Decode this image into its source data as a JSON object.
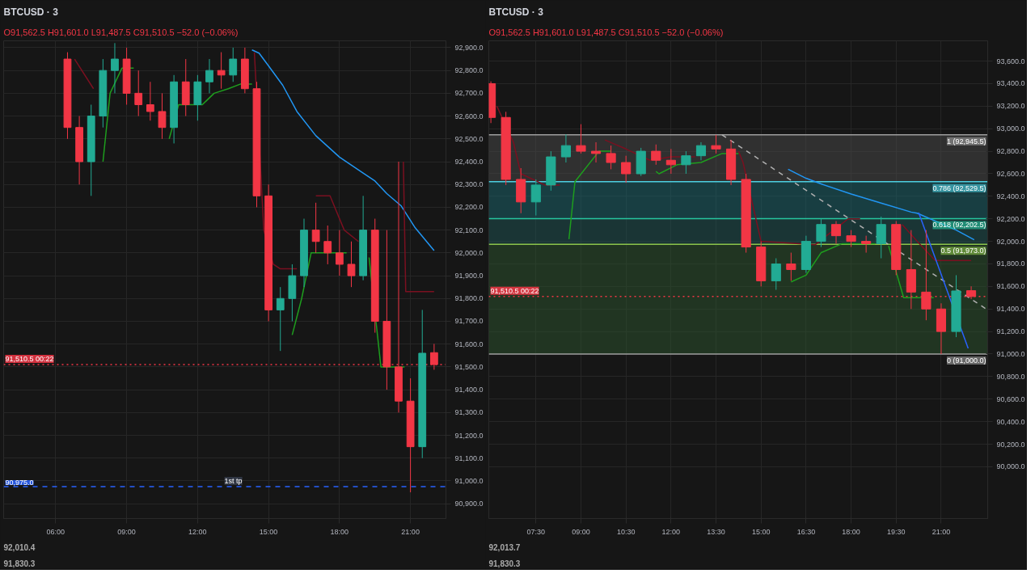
{
  "chart_data": [
    {
      "type": "candlestick",
      "title": "BTCUSD · 3",
      "subtitle": "O91,562.5 H91,601.0 L91,487.5 C91,510.5 −52.0 (−0.06%)",
      "x": [
        6.5,
        7.0,
        7.5,
        8.0,
        8.5,
        9.0,
        9.5,
        10.0,
        10.5,
        11.0,
        11.5,
        12.0,
        12.5,
        13.0,
        13.5,
        14.0,
        14.5,
        15.0,
        15.5,
        16.0,
        16.5,
        17.0,
        17.5,
        18.0,
        18.5,
        19.0,
        19.5,
        20.0,
        20.5,
        21.0,
        21.5,
        22.0
      ],
      "ohlc": [
        [
          92850,
          92880,
          92500,
          92550
        ],
        [
          92550,
          92600,
          92300,
          92400
        ],
        [
          92400,
          92650,
          92250,
          92600
        ],
        [
          92600,
          92850,
          92550,
          92800
        ],
        [
          92800,
          92920,
          92700,
          92850
        ],
        [
          92850,
          92900,
          92650,
          92700
        ],
        [
          92700,
          92800,
          92600,
          92650
        ],
        [
          92650,
          92750,
          92580,
          92620
        ],
        [
          92620,
          92700,
          92500,
          92550
        ],
        [
          92550,
          92780,
          92480,
          92750
        ],
        [
          92750,
          92850,
          92600,
          92650
        ],
        [
          92650,
          92780,
          92580,
          92750
        ],
        [
          92750,
          92850,
          92700,
          92800
        ],
        [
          92800,
          92880,
          92720,
          92780
        ],
        [
          92780,
          92900,
          92750,
          92850
        ],
        [
          92850,
          92900,
          92700,
          92720
        ],
        [
          92720,
          92750,
          92200,
          92250
        ],
        [
          92250,
          92300,
          91700,
          91750
        ],
        [
          91750,
          91850,
          91570,
          91800
        ],
        [
          91800,
          91950,
          91700,
          91900
        ],
        [
          91900,
          92150,
          91850,
          92100
        ],
        [
          92100,
          92220,
          92000,
          92050
        ],
        [
          92050,
          92120,
          91950,
          92000
        ],
        [
          92000,
          92100,
          91900,
          91950
        ],
        [
          91950,
          92050,
          91850,
          91900
        ],
        [
          91900,
          92250,
          91880,
          92100
        ],
        [
          92100,
          92150,
          91650,
          91700
        ],
        [
          91700,
          92100,
          91400,
          91500
        ],
        [
          91500,
          92400,
          91300,
          91350
        ],
        [
          91350,
          91450,
          90950,
          91150
        ],
        [
          91150,
          91750,
          91100,
          91560
        ],
        [
          91562.5,
          91601.0,
          91487.5,
          91510.5
        ]
      ],
      "colors": [
        "#f23645",
        "#f23645",
        "#22ab94",
        "#22ab94",
        "#22ab94",
        "#f23645",
        "#f23645",
        "#f23645",
        "#f23645",
        "#22ab94",
        "#f23645",
        "#22ab94",
        "#22ab94",
        "#f23645",
        "#22ab94",
        "#f23645",
        "#f23645",
        "#f23645",
        "#22ab94",
        "#22ab94",
        "#22ab94",
        "#f23645",
        "#f23645",
        "#f23645",
        "#f23645",
        "#22ab94",
        "#f23645",
        "#f23645",
        "#f23645",
        "#f23645",
        "#22ab94",
        "#f23645"
      ],
      "series": [
        {
          "type": "line",
          "color": "#2196f3",
          "x": [
            14.3,
            14.6,
            15.0,
            15.6,
            16.2,
            17.0,
            18.0,
            19.0,
            19.5,
            20.0,
            20.6,
            21.2,
            22.0
          ],
          "values": [
            92890,
            92876,
            92820,
            92735,
            92620,
            92514,
            92420,
            92350,
            92315,
            92260,
            92207,
            92110,
            92010.4
          ]
        },
        {
          "type": "line",
          "color": "#7a1020",
          "x": [
            6.8,
            7.6,
            7.7,
            14.4,
            14.8,
            15.2,
            15.5,
            16.2,
            16.9,
            17.0,
            17.6,
            18.2,
            18.8,
            18.9,
            20.7,
            20.8,
            21.6,
            22.0
          ],
          "values": [
            92850,
            92720,
            null,
            92880,
            92100,
            91950,
            91930,
            91930,
            null,
            92250,
            92250,
            92100,
            92050,
            null,
            92400,
            91830.3,
            91830.3,
            91830.3
          ]
        },
        {
          "type": "line",
          "color": "#1e9e1e",
          "x": [
            8.0,
            8.3,
            8.8,
            9.3,
            9.5,
            10.8,
            11.2,
            12.2,
            12.7,
            13.3,
            13.8,
            14.3,
            15.8,
            16.0,
            16.4,
            16.8,
            18.3,
            19.2,
            19.25,
            19.75,
            20.25,
            20.75
          ],
          "values": [
            92400,
            92700,
            92810,
            92810,
            null,
            92500,
            92650,
            92650,
            92700,
            92720,
            92740,
            92740,
            null,
            91640,
            91800,
            92000,
            92000,
            null,
            91980,
            91500,
            91500,
            91500
          ]
        }
      ],
      "xlim": [
        3.8,
        22.5
      ],
      "ylim": [
        90835,
        92930
      ],
      "xticks": [
        {
          "value": 6,
          "label": "06:00"
        },
        {
          "value": 9,
          "label": "09:00"
        },
        {
          "value": 12,
          "label": "12:00"
        },
        {
          "value": 15,
          "label": "15:00"
        },
        {
          "value": 18,
          "label": "18:00"
        },
        {
          "value": 21,
          "label": "21:00"
        }
      ],
      "yticks": [
        {
          "value": 90900,
          "label": "90,900.0"
        },
        {
          "value": 91000,
          "label": "91,000.0"
        },
        {
          "value": 91100,
          "label": "91,100.0"
        },
        {
          "value": 91200,
          "label": "91,200.0"
        },
        {
          "value": 91300,
          "label": "91,300.0"
        },
        {
          "value": 91400,
          "label": "91,400.0"
        },
        {
          "value": 91500,
          "label": "91,500.0"
        },
        {
          "value": 91600,
          "label": "91,600.0"
        },
        {
          "value": 91700,
          "label": "91,700.0"
        },
        {
          "value": 91800,
          "label": "91,800.0"
        },
        {
          "value": 91900,
          "label": "91,900.0"
        },
        {
          "value": 92000,
          "label": "92,000.0"
        },
        {
          "value": 92100,
          "label": "92,100.0"
        },
        {
          "value": 92200,
          "label": "92,200.0"
        },
        {
          "value": 92300,
          "label": "92,300.0"
        },
        {
          "value": 92400,
          "label": "92,400.0"
        },
        {
          "value": 92500,
          "label": "92,500.0"
        },
        {
          "value": 92600,
          "label": "92,600.0"
        },
        {
          "value": 92700,
          "label": "92,700.0"
        },
        {
          "value": 92800,
          "label": "92,800.0"
        },
        {
          "value": 92900,
          "label": "92,900.0"
        }
      ],
      "grid": true,
      "ref_lines": [
        {
          "axis": "y",
          "value": 91510.5,
          "label": "91,510.5 00:22",
          "color": "#f23645",
          "line_style": "dotted"
        },
        {
          "axis": "y",
          "value": 90975.0,
          "label": "90,975.0",
          "color": "#2962ff",
          "line_style": "dashed"
        }
      ],
      "annotations": [
        {
          "text": "1st tp",
          "x": 13.0,
          "y": 90975.0
        },
        "92,010.4",
        "91,830.3"
      ]
    },
    {
      "type": "candlestick",
      "title": "BTCUSD · 3",
      "subtitle": "O91,562.5 H91,601.0 L91,487.5 C91,510.5 −52.0 (−0.06%)",
      "x": [
        6.0,
        6.5,
        7.0,
        7.5,
        8.0,
        8.5,
        9.0,
        9.5,
        10.0,
        10.5,
        11.0,
        11.5,
        12.0,
        12.5,
        13.0,
        13.5,
        14.0,
        14.5,
        15.0,
        15.5,
        16.0,
        16.5,
        17.0,
        17.5,
        18.0,
        18.5,
        19.0,
        19.5,
        20.0,
        20.5,
        21.0,
        21.5,
        22.0
      ],
      "ohlc": [
        [
          93400,
          93420,
          93050,
          93100
        ],
        [
          93100,
          93150,
          92500,
          92550
        ],
        [
          92550,
          92650,
          92250,
          92350
        ],
        [
          92350,
          92550,
          92230,
          92500
        ],
        [
          92500,
          92800,
          92450,
          92750
        ],
        [
          92750,
          92950,
          92700,
          92850
        ],
        [
          92850,
          93040,
          92780,
          92800
        ],
        [
          92800,
          92880,
          92700,
          92780
        ],
        [
          92780,
          92850,
          92640,
          92700
        ],
        [
          92700,
          92760,
          92520,
          92600
        ],
        [
          92600,
          92830,
          92580,
          92800
        ],
        [
          92800,
          92860,
          92680,
          92720
        ],
        [
          92720,
          92820,
          92600,
          92680
        ],
        [
          92680,
          92800,
          92600,
          92760
        ],
        [
          92760,
          92880,
          92720,
          92850
        ],
        [
          92850,
          92945,
          92780,
          92820
        ],
        [
          92820,
          92900,
          92500,
          92550
        ],
        [
          92550,
          92600,
          91900,
          91950
        ],
        [
          91950,
          92000,
          91600,
          91650
        ],
        [
          91650,
          91850,
          91570,
          91800
        ],
        [
          91800,
          91900,
          91650,
          91750
        ],
        [
          91750,
          92050,
          91720,
          92000
        ],
        [
          92000,
          92200,
          91950,
          92150
        ],
        [
          92150,
          92180,
          91980,
          92050
        ],
        [
          92050,
          92100,
          91950,
          92000
        ],
        [
          92000,
          92050,
          91900,
          91980
        ],
        [
          91980,
          92220,
          91850,
          92150
        ],
        [
          92150,
          92180,
          91700,
          91750
        ],
        [
          91750,
          92100,
          91400,
          91550
        ],
        [
          91550,
          92100,
          91300,
          91400
        ],
        [
          91400,
          91450,
          91000,
          91200
        ],
        [
          91200,
          91700,
          91150,
          91560
        ],
        [
          91562.5,
          91601.0,
          91487.5,
          91510.5
        ]
      ],
      "colors": [
        "#f23645",
        "#f23645",
        "#f23645",
        "#22ab94",
        "#22ab94",
        "#22ab94",
        "#f23645",
        "#f23645",
        "#f23645",
        "#f23645",
        "#22ab94",
        "#f23645",
        "#f23645",
        "#22ab94",
        "#22ab94",
        "#f23645",
        "#f23645",
        "#f23645",
        "#f23645",
        "#22ab94",
        "#f23645",
        "#22ab94",
        "#22ab94",
        "#f23645",
        "#f23645",
        "#f23645",
        "#22ab94",
        "#f23645",
        "#f23645",
        "#f23645",
        "#f23645",
        "#22ab94",
        "#f23645"
      ],
      "series": [
        {
          "type": "line",
          "color": "#2196f3",
          "x": [
            15.9,
            16.5,
            17.0,
            18.0,
            19.0,
            20.0,
            20.2,
            21.5,
            22.1
          ],
          "values": [
            92640,
            92560,
            92510,
            92420,
            92340,
            92260,
            92250,
            92100,
            92013.7
          ]
        },
        {
          "type": "line",
          "color": "#7a1020",
          "x": [
            6.2,
            6.75,
            7.0,
            7.8,
            8.3,
            8.4,
            9.8,
            10.5,
            11.3,
            12.0,
            12.8,
            13.3,
            14.25,
            14.4,
            15.0,
            16.8,
            17.9,
            18.3,
            19.2,
            19.7,
            20.2,
            20.8,
            22.0
          ],
          "values": [
            93200,
            92880,
            92600,
            92500,
            92500,
            null,
            92900,
            92820,
            92720,
            92750,
            92750,
            null,
            92800,
            92700,
            92000,
            91970,
            92200,
            92200,
            null,
            92150,
            92000,
            91830.3,
            91830.3
          ]
        },
        {
          "type": "line",
          "color": "#1e9e1e",
          "x": [
            8.6,
            8.8,
            9.6,
            10.0,
            10.4,
            11.5,
            11.6,
            12.2,
            13.0,
            13.7,
            14.25,
            14.3,
            16.0,
            16.5,
            17.0,
            17.7,
            18.8,
            19.1,
            19.25,
            19.75,
            20.25,
            20.75
          ],
          "values": [
            92020,
            92530,
            92800,
            92800,
            null,
            92620,
            92600,
            92680,
            92700,
            92780,
            92780,
            null,
            91640,
            91700,
            91900,
            91980,
            91980,
            null,
            91960,
            91500,
            91500,
            91500
          ]
        },
        {
          "type": "line",
          "color": "#b0b0b0",
          "line_style": "dashed",
          "x": [
            13.7,
            22.5
          ],
          "values": [
            92945.5,
            91400
          ]
        },
        {
          "type": "line",
          "color": "#2962ff",
          "x": [
            20.25,
            21.9
          ],
          "values": [
            92255,
            91050
          ]
        }
      ],
      "xlim": [
        5.93,
        22.55
      ],
      "ylim": [
        89540,
        93780
      ],
      "xticks": [
        {
          "value": 7.5,
          "label": "07:30"
        },
        {
          "value": 9,
          "label": "09:00"
        },
        {
          "value": 10.5,
          "label": "10:30"
        },
        {
          "value": 12,
          "label": "12:00"
        },
        {
          "value": 13.5,
          "label": "13:30"
        },
        {
          "value": 15,
          "label": "15:00"
        },
        {
          "value": 16.5,
          "label": "16:30"
        },
        {
          "value": 18,
          "label": "18:00"
        },
        {
          "value": 19.5,
          "label": "19:30"
        },
        {
          "value": 21,
          "label": "21:00"
        }
      ],
      "yticks": [
        {
          "value": 90000,
          "label": "90,000.0"
        },
        {
          "value": 90200,
          "label": "90,200.0"
        },
        {
          "value": 90400,
          "label": "90,400.0"
        },
        {
          "value": 90600,
          "label": "90,600.0"
        },
        {
          "value": 90800,
          "label": "90,800.0"
        },
        {
          "value": 91000,
          "label": "91,000.0"
        },
        {
          "value": 91200,
          "label": "91,200.0"
        },
        {
          "value": 91400,
          "label": "91,400.0"
        },
        {
          "value": 91600,
          "label": "91,600.0"
        },
        {
          "value": 91800,
          "label": "91,800.0"
        },
        {
          "value": 92000,
          "label": "92,000.0"
        },
        {
          "value": 92200,
          "label": "92,200.0"
        },
        {
          "value": 92400,
          "label": "92,400.0"
        },
        {
          "value": 92600,
          "label": "92,600.0"
        },
        {
          "value": 92800,
          "label": "92,800.0"
        },
        {
          "value": 93000,
          "label": "93,000.0"
        },
        {
          "value": 93200,
          "label": "93,200.0"
        },
        {
          "value": 93400,
          "label": "93,400.0"
        },
        {
          "value": 93600,
          "label": "93,600.0"
        }
      ],
      "grid": true,
      "bands": [
        {
          "axis": "y",
          "from": 92529.5,
          "to": 92945.5,
          "color": "#505050"
        },
        {
          "axis": "y",
          "from": 92202.5,
          "to": 92529.5,
          "color": "#1b6e78"
        },
        {
          "axis": "y",
          "from": 91973.0,
          "to": 92202.5,
          "color": "#1f5a5a"
        },
        {
          "axis": "y",
          "from": 91000.0,
          "to": 91973.0,
          "color": "#2e5a30"
        }
      ],
      "ref_lines": [
        {
          "axis": "y",
          "value": 92945.5,
          "label": "1 (92,945.5)",
          "color": "#9e9e9e"
        },
        {
          "axis": "y",
          "value": 92529.5,
          "label": "0.786 (92,529.5)",
          "color": "#4dd0e1"
        },
        {
          "axis": "y",
          "value": 92202.5,
          "label": "0.618 (92,202.5)",
          "color": "#26c6a0"
        },
        {
          "axis": "y",
          "value": 91973.0,
          "label": "0.5 (91,973.0)",
          "color": "#8bc34a"
        },
        {
          "axis": "y",
          "value": 91000.0,
          "label": "0 (91,000.0)",
          "color": "#9e9e9e"
        },
        {
          "axis": "y",
          "value": 91510.5,
          "label": "91,510.5 00:22",
          "color": "#f23645",
          "line_style": "dotted"
        }
      ],
      "annotations": [
        "92,013.7",
        "91,830.3"
      ]
    }
  ]
}
